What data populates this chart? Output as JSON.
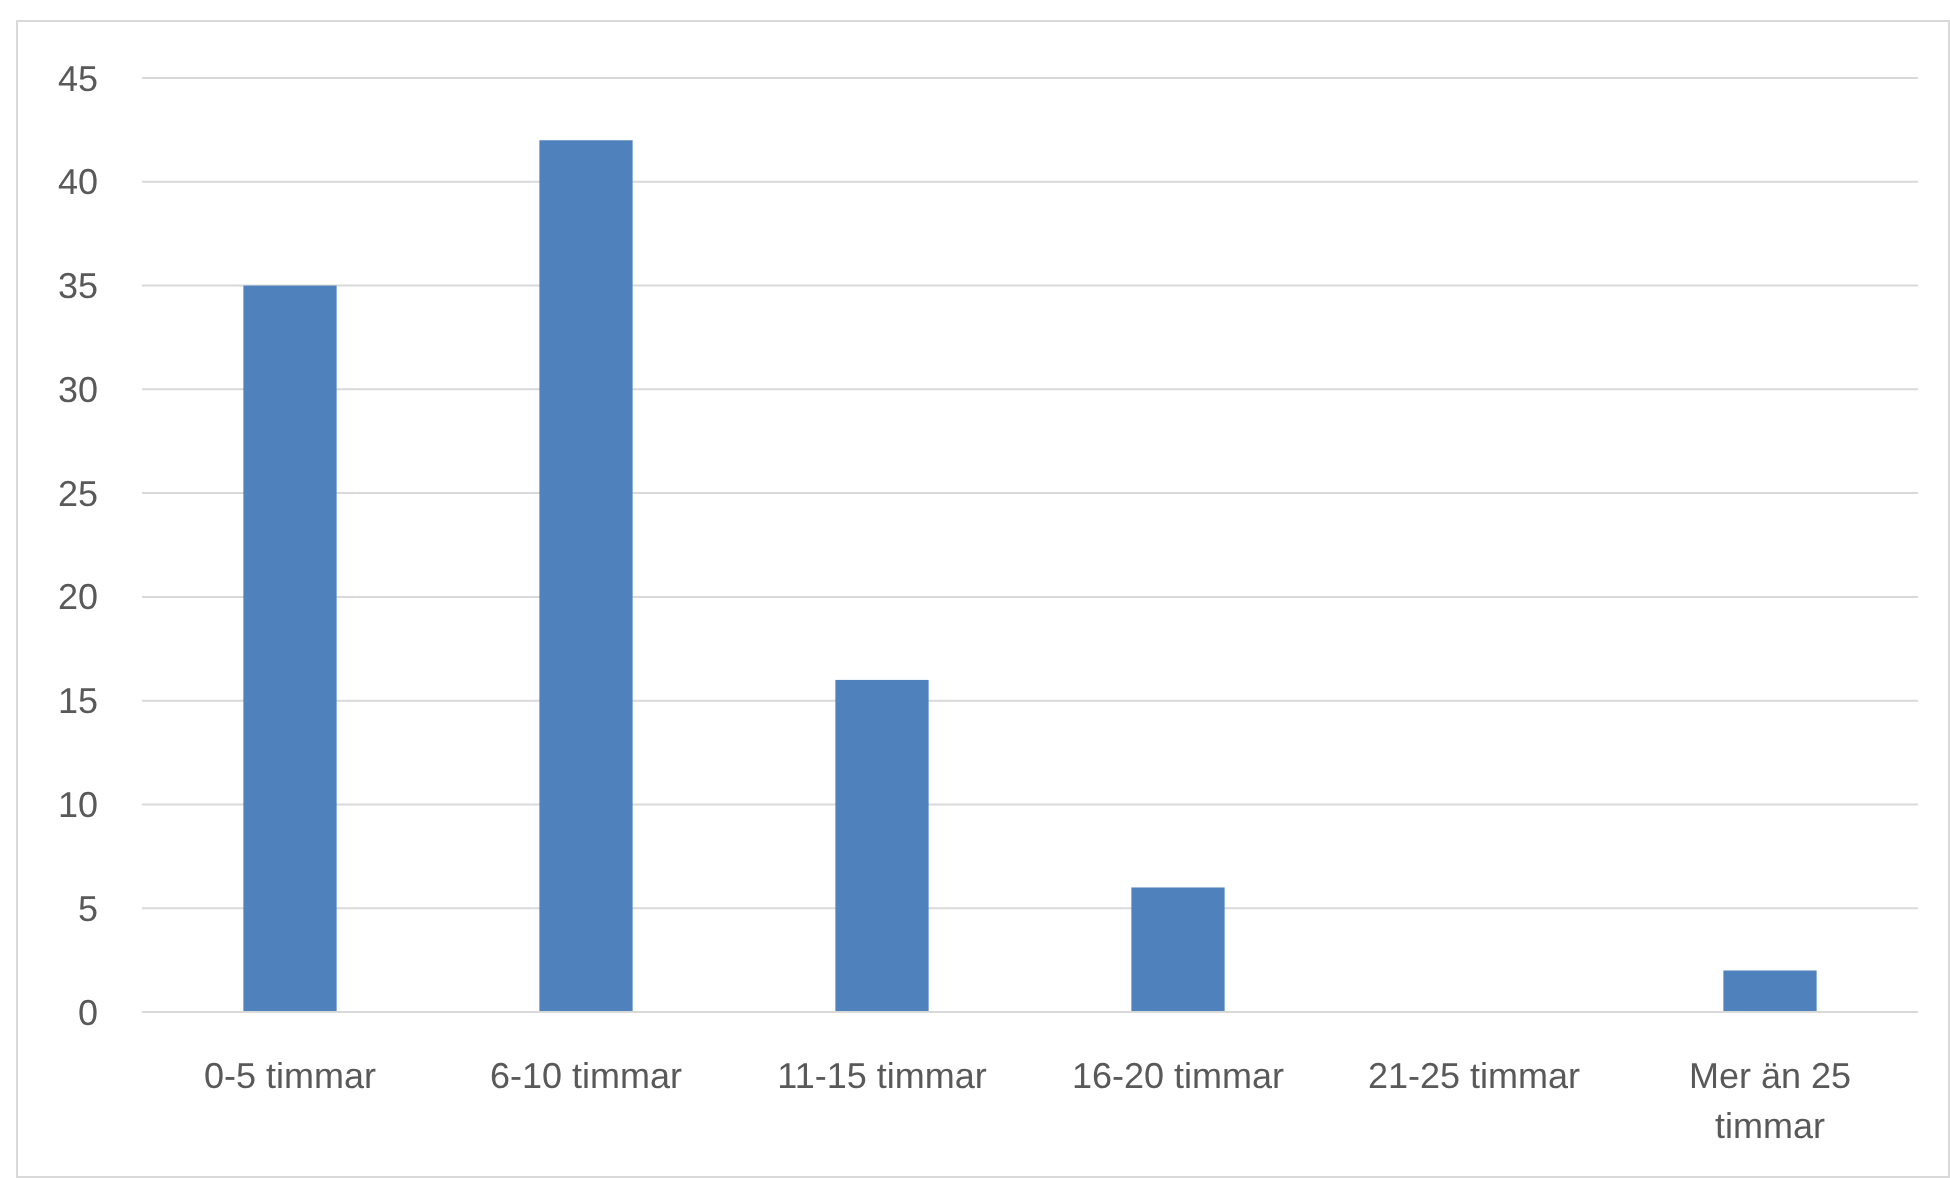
{
  "chart_data": {
    "type": "bar",
    "categories": [
      "0-5 timmar",
      "6-10 timmar",
      "11-15 timmar",
      "16-20 timmar",
      "21-25 timmar",
      "Mer än 25 timmar"
    ],
    "values": [
      35,
      42,
      16,
      6,
      0,
      2
    ],
    "color": "#4f81bd",
    "ylim": [
      0,
      45
    ],
    "yticks": [
      0,
      5,
      10,
      15,
      20,
      25,
      30,
      35,
      40,
      45
    ],
    "grid": "y"
  }
}
